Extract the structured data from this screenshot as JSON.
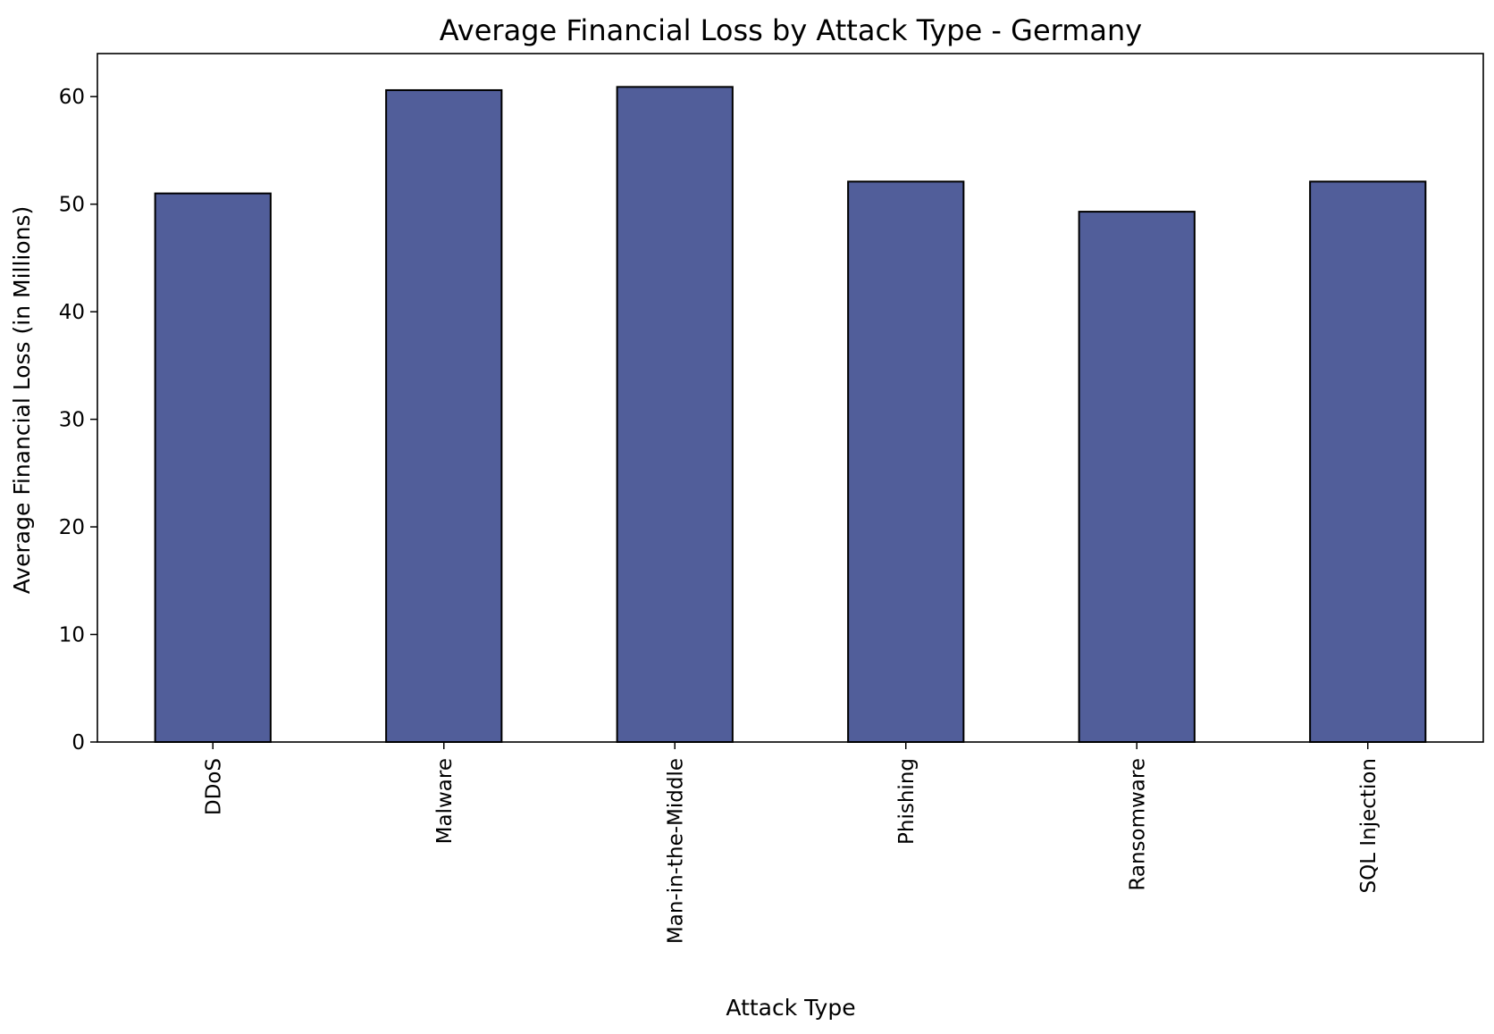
{
  "chart_data": {
    "type": "bar",
    "title": "Average Financial Loss by Attack Type - Germany",
    "xlabel": "Attack Type",
    "ylabel": "Average Financial Loss (in Millions)",
    "categories": [
      "DDoS",
      "Malware",
      "Man-in-the-Middle",
      "Phishing",
      "Ransomware",
      "SQL Injection"
    ],
    "values": [
      51.0,
      60.6,
      60.9,
      52.1,
      49.3,
      52.1
    ],
    "ylim": [
      0,
      64
    ],
    "yticks": [
      0,
      10,
      20,
      30,
      40,
      50,
      60
    ],
    "ytick_labels": [
      "0",
      "10",
      "20",
      "30",
      "40",
      "50",
      "60"
    ],
    "bar_color": "#515e9a",
    "edge_color": "#000000",
    "grid": false,
    "legend": "none"
  }
}
